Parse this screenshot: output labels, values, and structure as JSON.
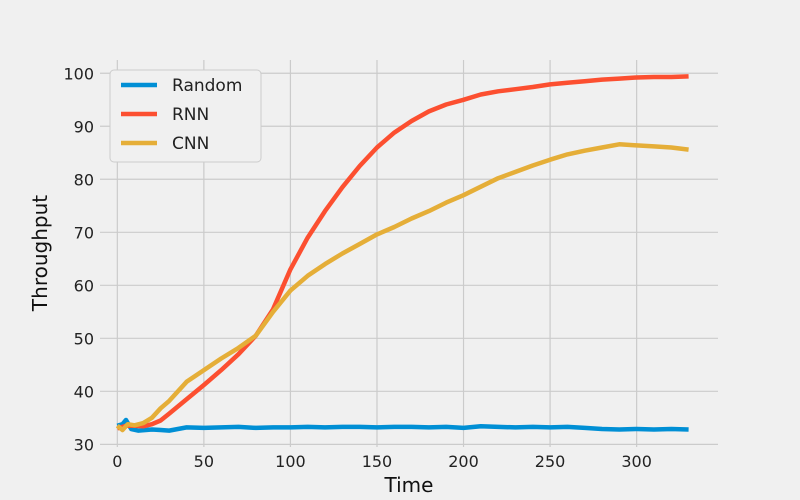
{
  "chart_data": {
    "type": "line",
    "title": "",
    "xlabel": "Time",
    "ylabel": "Throughput",
    "xlim": [
      -10,
      347
    ],
    "ylim": [
      29.5,
      102.5
    ],
    "xticks": [
      0,
      50,
      100,
      150,
      200,
      250,
      300
    ],
    "yticks": [
      30,
      40,
      50,
      60,
      70,
      80,
      90,
      100
    ],
    "grid": true,
    "legend_position": "top-left",
    "series": [
      {
        "name": "Random",
        "color": "#008fd5",
        "points": [
          [
            0,
            33.5
          ],
          [
            3,
            33.8
          ],
          [
            5,
            34.6
          ],
          [
            8,
            32.9
          ],
          [
            12,
            32.6
          ],
          [
            20,
            32.8
          ],
          [
            25,
            32.7
          ],
          [
            30,
            32.6
          ],
          [
            40,
            33.2
          ],
          [
            50,
            33.1
          ],
          [
            60,
            33.2
          ],
          [
            70,
            33.3
          ],
          [
            80,
            33.1
          ],
          [
            90,
            33.2
          ],
          [
            100,
            33.2
          ],
          [
            110,
            33.3
          ],
          [
            120,
            33.2
          ],
          [
            130,
            33.3
          ],
          [
            140,
            33.3
          ],
          [
            150,
            33.2
          ],
          [
            160,
            33.3
          ],
          [
            170,
            33.3
          ],
          [
            180,
            33.2
          ],
          [
            190,
            33.3
          ],
          [
            200,
            33.1
          ],
          [
            210,
            33.4
          ],
          [
            220,
            33.3
          ],
          [
            230,
            33.2
          ],
          [
            240,
            33.3
          ],
          [
            250,
            33.2
          ],
          [
            260,
            33.3
          ],
          [
            270,
            33.1
          ],
          [
            280,
            32.9
          ],
          [
            290,
            32.8
          ],
          [
            300,
            32.9
          ],
          [
            310,
            32.8
          ],
          [
            320,
            32.9
          ],
          [
            330,
            32.8
          ]
        ]
      },
      {
        "name": "RNN",
        "color": "#fc4f30",
        "points": [
          [
            0,
            33.0
          ],
          [
            5,
            33.5
          ],
          [
            10,
            33.5
          ],
          [
            15,
            33.4
          ],
          [
            20,
            33.8
          ],
          [
            25,
            34.5
          ],
          [
            30,
            35.8
          ],
          [
            40,
            38.5
          ],
          [
            50,
            41.2
          ],
          [
            60,
            44.0
          ],
          [
            70,
            47.0
          ],
          [
            80,
            50.5
          ],
          [
            90,
            55.5
          ],
          [
            100,
            63.0
          ],
          [
            110,
            69.0
          ],
          [
            120,
            74.0
          ],
          [
            130,
            78.5
          ],
          [
            140,
            82.5
          ],
          [
            150,
            86.0
          ],
          [
            160,
            88.8
          ],
          [
            170,
            91.0
          ],
          [
            180,
            92.8
          ],
          [
            190,
            94.1
          ],
          [
            200,
            95.0
          ],
          [
            210,
            96.0
          ],
          [
            220,
            96.6
          ],
          [
            230,
            97.0
          ],
          [
            240,
            97.4
          ],
          [
            250,
            97.9
          ],
          [
            260,
            98.2
          ],
          [
            270,
            98.5
          ],
          [
            280,
            98.8
          ],
          [
            290,
            99.0
          ],
          [
            300,
            99.2
          ],
          [
            310,
            99.3
          ],
          [
            320,
            99.3
          ],
          [
            330,
            99.4
          ]
        ]
      },
      {
        "name": "CNN",
        "color": "#e5ae38",
        "points": [
          [
            0,
            33.5
          ],
          [
            3,
            32.7
          ],
          [
            6,
            33.8
          ],
          [
            10,
            33.6
          ],
          [
            15,
            34.0
          ],
          [
            20,
            35.0
          ],
          [
            25,
            36.8
          ],
          [
            30,
            38.2
          ],
          [
            40,
            41.8
          ],
          [
            50,
            44.0
          ],
          [
            60,
            46.2
          ],
          [
            70,
            48.2
          ],
          [
            80,
            50.5
          ],
          [
            90,
            55.0
          ],
          [
            100,
            59.0
          ],
          [
            110,
            61.8
          ],
          [
            120,
            64.0
          ],
          [
            130,
            66.0
          ],
          [
            140,
            67.8
          ],
          [
            150,
            69.6
          ],
          [
            160,
            71.0
          ],
          [
            170,
            72.6
          ],
          [
            180,
            74.0
          ],
          [
            190,
            75.6
          ],
          [
            200,
            77.0
          ],
          [
            210,
            78.6
          ],
          [
            220,
            80.2
          ],
          [
            230,
            81.4
          ],
          [
            240,
            82.6
          ],
          [
            250,
            83.7
          ],
          [
            260,
            84.7
          ],
          [
            270,
            85.4
          ],
          [
            280,
            86.0
          ],
          [
            290,
            86.6
          ],
          [
            300,
            86.4
          ],
          [
            310,
            86.2
          ],
          [
            320,
            86.0
          ],
          [
            330,
            85.6
          ]
        ]
      }
    ]
  }
}
